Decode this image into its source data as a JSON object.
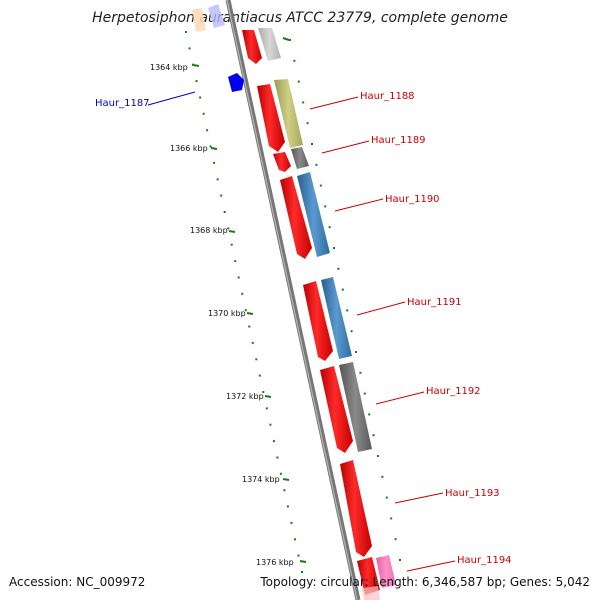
{
  "title": "Herpetosiphon aurantiacus ATCC 23779, complete genome",
  "accession": "Accession: NC_009972",
  "topology": "Topology: circular; Length: 6,346,587 bp; Genes: 5,042",
  "colors": {
    "backbone": "#777777",
    "cds_forward": "#ff0000",
    "ticks": "#1a7a1a",
    "label_red": "#cc0000",
    "label_blue": "#0000cc"
  },
  "ticks": [
    {
      "label": "1364 kbp"
    },
    {
      "label": "1366 kbp"
    },
    {
      "label": "1368 kbp"
    },
    {
      "label": "1370 kbp"
    },
    {
      "label": "1372 kbp"
    },
    {
      "label": "1374 kbp"
    },
    {
      "label": "1376 kbp"
    }
  ],
  "genes": [
    {
      "name": "Haur_1187",
      "color": "#0000cc"
    },
    {
      "name": "Haur_1188",
      "color": "#cc0000"
    },
    {
      "name": "Haur_1189",
      "color": "#cc0000"
    },
    {
      "name": "Haur_1190",
      "color": "#cc0000"
    },
    {
      "name": "Haur_1191",
      "color": "#cc0000"
    },
    {
      "name": "Haur_1192",
      "color": "#cc0000"
    },
    {
      "name": "Haur_1193",
      "color": "#cc0000"
    },
    {
      "name": "Haur_1194",
      "color": "#cc0000"
    }
  ]
}
